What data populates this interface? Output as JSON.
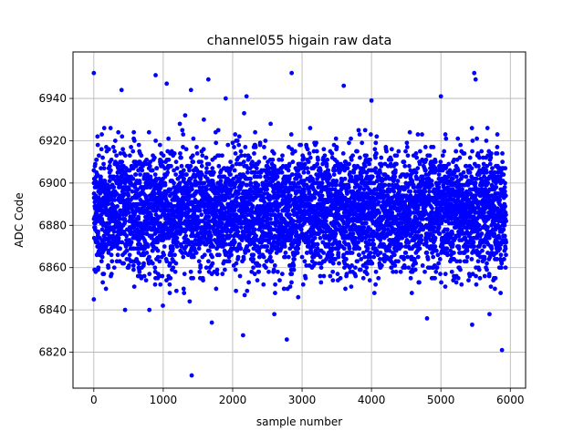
{
  "chart_data": {
    "type": "scatter",
    "title": "channel055 higain raw data",
    "xlabel": "sample number",
    "ylabel": "ADC Code",
    "xlim": [
      -300,
      6220
    ],
    "ylim": [
      6803,
      6962
    ],
    "xticks": [
      0,
      1000,
      2000,
      3000,
      4000,
      5000,
      6000
    ],
    "yticks": [
      6820,
      6840,
      6860,
      6880,
      6900,
      6920,
      6940
    ],
    "grid": true,
    "marker_color": "#0000ff",
    "series": [
      {
        "n_points": 5940,
        "x_range": [
          0,
          5939
        ],
        "center": 6887,
        "dense_band": [
          6860,
          6920
        ],
        "notable_points": [
          {
            "x": 0,
            "y": 6952
          },
          {
            "x": 890,
            "y": 6951
          },
          {
            "x": 1050,
            "y": 6947
          },
          {
            "x": 1650,
            "y": 6949
          },
          {
            "x": 2850,
            "y": 6952
          },
          {
            "x": 5480,
            "y": 6952
          },
          {
            "x": 5500,
            "y": 6949
          },
          {
            "x": 400,
            "y": 6944
          },
          {
            "x": 1400,
            "y": 6944
          },
          {
            "x": 1900,
            "y": 6940
          },
          {
            "x": 2200,
            "y": 6941
          },
          {
            "x": 3600,
            "y": 6946
          },
          {
            "x": 4000,
            "y": 6939
          },
          {
            "x": 5000,
            "y": 6941
          },
          {
            "x": 1410,
            "y": 6809
          },
          {
            "x": 5880,
            "y": 6821
          },
          {
            "x": 2780,
            "y": 6826
          },
          {
            "x": 2150,
            "y": 6828
          },
          {
            "x": 5450,
            "y": 6833
          },
          {
            "x": 1700,
            "y": 6834
          },
          {
            "x": 4800,
            "y": 6836
          },
          {
            "x": 450,
            "y": 6840
          },
          {
            "x": 800,
            "y": 6840
          },
          {
            "x": 2600,
            "y": 6838
          },
          {
            "x": 5700,
            "y": 6838
          },
          {
            "x": 0,
            "y": 6845
          }
        ]
      }
    ]
  }
}
